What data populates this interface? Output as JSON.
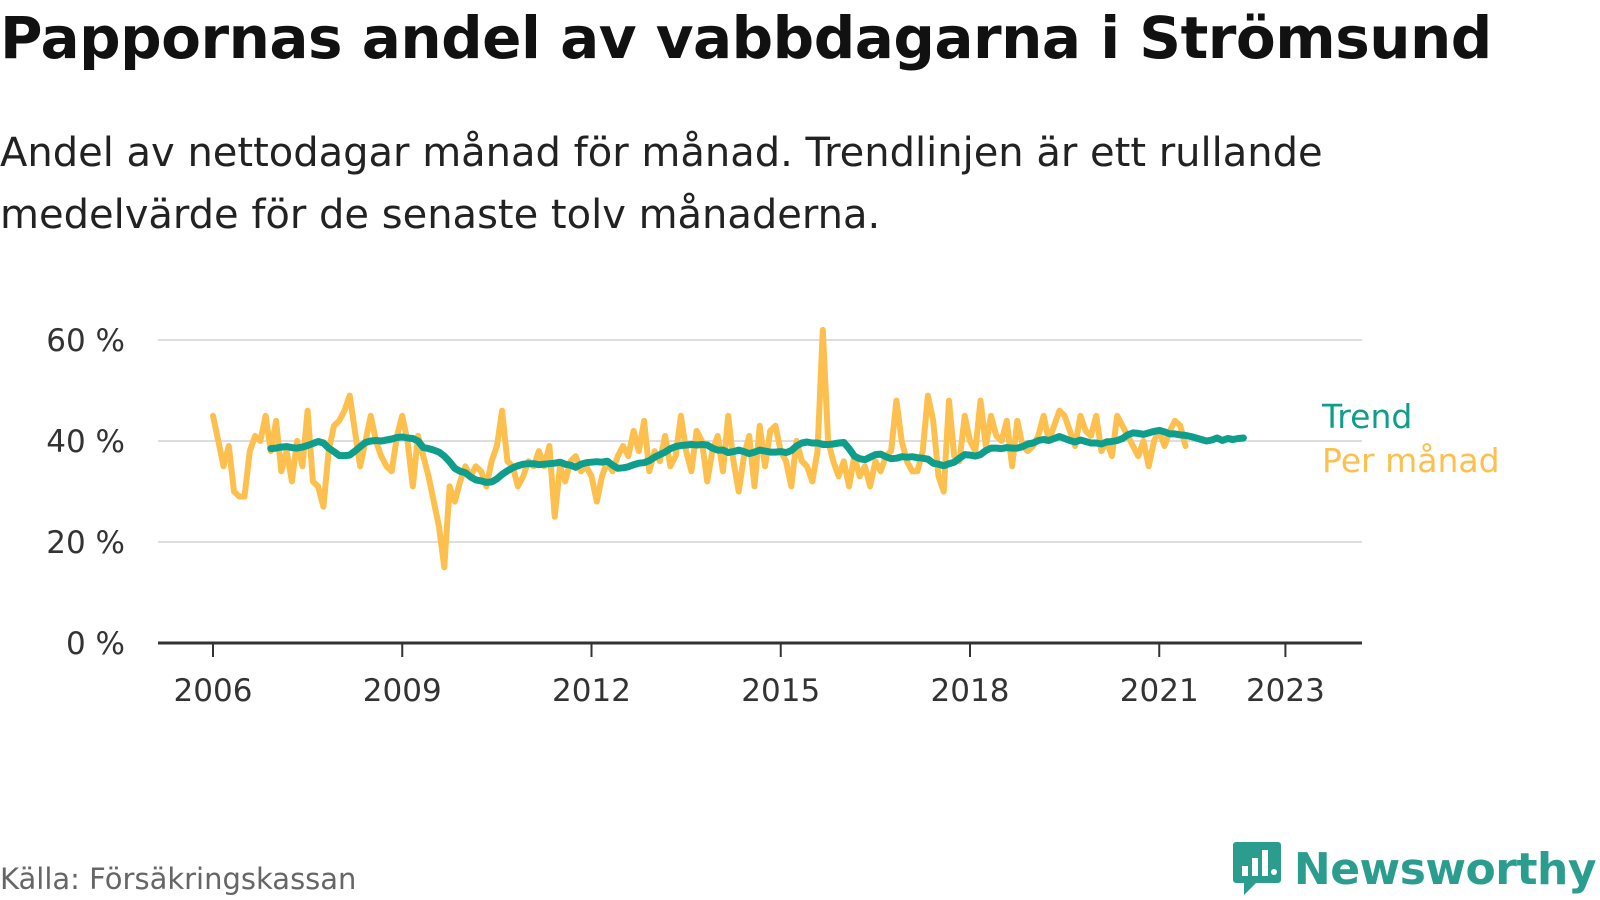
{
  "title": "Pappornas andel av vabbdagarna i Strömsund",
  "subtitle": "Andel av nettodagar månad för månad. Trendlinjen är ett rullande medelvärde för de senaste tolv månaderna.",
  "source": "Källa: Försäkringskassan",
  "brand": "Newsworthy",
  "colors": {
    "trend": "#0f9d8c",
    "monthly": "#fdc04e",
    "grid": "#dddddd",
    "axis": "#333333",
    "brand": "#2a9d8f"
  },
  "chart_data": {
    "type": "line",
    "title": "Pappornas andel av vabbdagarna i Strömsund",
    "xlabel": "",
    "ylabel": "",
    "ylim": [
      0,
      60
    ],
    "xlim": [
      2005.75,
      2024.25
    ],
    "y_ticks": [
      0,
      20,
      40,
      60
    ],
    "y_tick_labels": [
      "0 %",
      "20 %",
      "40 %",
      "60 %"
    ],
    "x_ticks": [
      2006,
      2009,
      2012,
      2015,
      2018,
      2021,
      2023
    ],
    "x_tick_labels": [
      "2006",
      "2009",
      "2012",
      "2015",
      "2018",
      "2021",
      "2023"
    ],
    "grid": true,
    "legend": [
      "Trend",
      "Per månad"
    ],
    "series": [
      {
        "name": "Per månad",
        "start": 2006.0,
        "step": 0.0833333,
        "values": [
          45,
          40,
          35,
          39,
          30,
          29,
          29,
          38,
          41,
          40,
          45,
          38,
          44,
          34,
          38,
          32,
          40,
          35,
          46,
          32,
          31,
          27,
          38,
          43,
          44,
          46,
          49,
          42,
          35,
          40,
          45,
          40,
          37,
          35,
          34,
          41,
          45,
          40,
          31,
          41,
          37,
          33,
          28,
          23,
          15,
          31,
          28,
          32,
          35,
          33,
          35,
          34,
          31,
          36,
          39,
          46,
          36,
          35,
          31,
          33,
          36,
          35,
          38,
          35,
          39,
          25,
          35,
          32,
          36,
          37,
          34,
          35,
          33,
          28,
          33,
          36,
          34,
          37,
          39,
          37,
          42,
          38,
          44,
          34,
          38,
          36,
          41,
          35,
          37,
          45,
          38,
          34,
          42,
          40,
          32,
          38,
          41,
          34,
          45,
          36,
          30,
          37,
          41,
          31,
          43,
          35,
          42,
          43,
          38,
          36,
          31,
          40,
          36,
          35,
          32,
          38,
          62,
          40,
          36,
          33,
          36,
          31,
          37,
          33,
          35,
          31,
          36,
          34,
          37,
          38,
          48,
          40,
          36,
          34,
          34,
          38,
          49,
          44,
          33,
          30,
          48,
          37,
          36,
          45,
          40,
          38,
          48,
          39,
          45,
          41,
          40,
          44,
          35,
          44,
          39,
          38,
          39,
          41,
          45,
          40,
          43,
          46,
          45,
          42,
          39,
          45,
          42,
          41,
          45,
          38,
          40,
          37,
          45,
          43,
          41,
          39,
          37,
          40,
          35,
          40,
          42,
          39,
          42,
          44,
          43,
          39
        ]
      },
      {
        "name": "Trend",
        "start": 2006.917,
        "step": 0.0833333,
        "values": [
          38.5,
          38.6,
          38.8,
          38.9,
          38.7,
          38.6,
          38.8,
          39.1,
          39.5,
          39.9,
          39.6,
          38.6,
          37.9,
          37.1,
          37.1,
          37.2,
          38.0,
          38.9,
          39.7,
          40.0,
          40.1,
          40.0,
          40.2,
          40.4,
          40.7,
          40.8,
          40.6,
          40.5,
          40.0,
          38.7,
          38.5,
          38.2,
          37.8,
          37.0,
          35.9,
          34.6,
          34.0,
          33.7,
          32.9,
          32.3,
          32.1,
          31.8,
          31.9,
          32.5,
          33.4,
          34.1,
          34.7,
          35.1,
          35.4,
          35.5,
          35.5,
          35.3,
          35.4,
          35.5,
          35.6,
          35.8,
          35.4,
          35.2,
          34.8,
          35.4,
          35.7,
          35.8,
          35.9,
          35.8,
          36.0,
          35.2,
          34.6,
          34.7,
          34.9,
          35.3,
          35.6,
          35.7,
          36.1,
          36.8,
          37.3,
          37.8,
          38.5,
          38.9,
          39.1,
          39.2,
          39.3,
          39.2,
          39.3,
          39.2,
          38.6,
          38.2,
          38.2,
          37.7,
          37.9,
          38.2,
          37.9,
          37.5,
          37.8,
          38.2,
          38.0,
          37.8,
          37.8,
          37.9,
          37.7,
          38.1,
          39.0,
          39.6,
          39.8,
          39.6,
          39.6,
          39.3,
          39.3,
          39.4,
          39.6,
          39.7,
          38.5,
          37.0,
          36.5,
          36.3,
          36.8,
          37.3,
          37.4,
          36.9,
          36.5,
          36.6,
          36.9,
          36.8,
          36.9,
          36.7,
          36.6,
          36.4,
          35.6,
          35.4,
          35.1,
          35.5,
          35.8,
          36.6,
          37.3,
          37.2,
          37.0,
          37.3,
          38.1,
          38.6,
          38.6,
          38.5,
          38.7,
          38.6,
          38.6,
          38.9,
          39.4,
          39.6,
          40.1,
          40.3,
          40.1,
          40.5,
          40.9,
          40.5,
          40.1,
          39.8,
          40.2,
          39.9,
          39.6,
          39.6,
          39.4,
          39.8,
          39.9,
          40.1,
          40.5,
          41.2,
          41.6,
          41.5,
          41.3,
          41.6,
          41.9,
          42.1,
          41.8,
          41.4,
          41.4,
          41.2,
          41.1,
          40.9,
          40.6,
          40.3,
          40.0,
          40.2,
          40.6,
          40.1,
          40.5,
          40.3,
          40.5,
          40.6
        ]
      }
    ]
  }
}
